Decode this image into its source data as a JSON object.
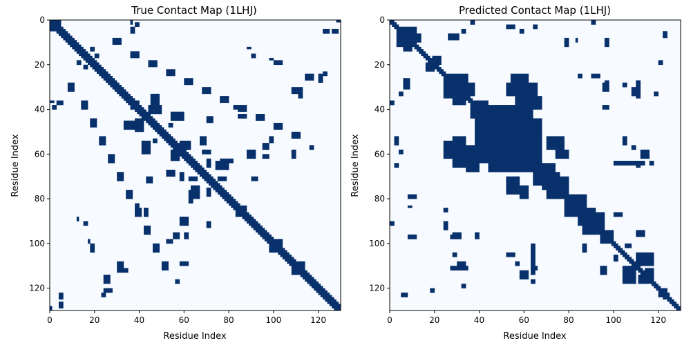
{
  "chart_data": [
    {
      "type": "heatmap",
      "title": "True Contact Map (1LHJ)",
      "xlabel": "Residue Index",
      "ylabel": "Residue Index",
      "n": 130,
      "xlim": [
        0,
        130
      ],
      "ylim": [
        130,
        0
      ],
      "xticks": [
        "0",
        "20",
        "40",
        "60",
        "80",
        "100",
        "120"
      ],
      "yticks": [
        "0",
        "20",
        "40",
        "60",
        "80",
        "100",
        "120"
      ],
      "colormap": {
        "contact": "#08306b",
        "no_contact": "#f7fbff"
      },
      "diagonal_band_halfwidth": 2,
      "contacts": [
        [
          0,
          3,
          1,
          5
        ],
        [
          20,
          22,
          15,
          17
        ],
        [
          50,
          53,
          50,
          53
        ],
        [
          60,
          63,
          60,
          63
        ],
        [
          98,
          104,
          98,
          104
        ],
        [
          108,
          114,
          108,
          114
        ],
        [
          36,
          40,
          36,
          40
        ],
        [
          44,
          50,
          38,
          42
        ],
        [
          33,
          40,
          45,
          49
        ],
        [
          54,
          60,
          41,
          45
        ],
        [
          58,
          63,
          54,
          58
        ],
        [
          52,
          56,
          67,
          70
        ],
        [
          58,
          62,
          54,
          58
        ],
        [
          68,
          72,
          58,
          60
        ],
        [
          62,
          66,
          70,
          72
        ],
        [
          76,
          82,
          62,
          64
        ],
        [
          63,
          67,
          74,
          80
        ],
        [
          70,
          72,
          75,
          79
        ],
        [
          0,
          2,
          36,
          37
        ],
        [
          46,
          48,
          53,
          55
        ],
        [
          70,
          73,
          43,
          46
        ],
        [
          84,
          88,
          42,
          44
        ],
        [
          88,
          90,
          12,
          13
        ],
        [
          98,
          100,
          17,
          18
        ],
        [
          108,
          112,
          30,
          33
        ],
        [
          114,
          118,
          24,
          27
        ],
        [
          122,
          125,
          4,
          6
        ],
        [
          122,
          124,
          23,
          25
        ],
        [
          36,
          38,
          3,
          6
        ],
        [
          12,
          14,
          18,
          20
        ],
        [
          4,
          6,
          126,
          129
        ],
        [
          1,
          3,
          38,
          40
        ],
        [
          15,
          17,
          90,
          92
        ],
        [
          18,
          20,
          100,
          104
        ],
        [
          30,
          35,
          111,
          113
        ],
        [
          24,
          28,
          120,
          122
        ],
        [
          38,
          40,
          82,
          86
        ],
        [
          52,
          55,
          98,
          100
        ],
        [
          55,
          58,
          95,
          98
        ],
        [
          60,
          62,
          95,
          98
        ],
        [
          70,
          72,
          90,
          93
        ],
        [
          85,
          88,
          83,
          86
        ],
        [
          88,
          92,
          58,
          62
        ],
        [
          58,
          62,
          108,
          110
        ],
        [
          8,
          11,
          28,
          32
        ],
        [
          14,
          17,
          36,
          40
        ],
        [
          18,
          21,
          44,
          48
        ],
        [
          22,
          25,
          52,
          56
        ],
        [
          26,
          29,
          60,
          64
        ],
        [
          30,
          33,
          68,
          72
        ],
        [
          34,
          37,
          76,
          80
        ],
        [
          38,
          41,
          84,
          88
        ],
        [
          42,
          45,
          92,
          96
        ],
        [
          46,
          49,
          100,
          104
        ],
        [
          50,
          53,
          108,
          112
        ],
        [
          56,
          58,
          116,
          118
        ],
        [
          128,
          130,
          0,
          1
        ]
      ]
    },
    {
      "type": "heatmap",
      "title": "Predicted Contact Map (1LHJ)",
      "xlabel": "Residue Index",
      "ylabel": "Residue Index",
      "n": 130,
      "xlim": [
        0,
        130
      ],
      "ylim": [
        130,
        0
      ],
      "xticks": [
        "0",
        "20",
        "40",
        "60",
        "80",
        "100",
        "120"
      ],
      "yticks": [
        "0",
        "20",
        "40",
        "60",
        "80",
        "100",
        "120"
      ],
      "colormap": {
        "contact": "#08306b",
        "no_contact": "#f7fbff"
      },
      "diagonal_band_halfwidth": 1,
      "contacts": [
        [
          3,
          10,
          3,
          12
        ],
        [
          6,
          10,
          10,
          14
        ],
        [
          19,
          23,
          16,
          20
        ],
        [
          24,
          35,
          24,
          35
        ],
        [
          26,
          38,
          28,
          34
        ],
        [
          36,
          44,
          36,
          44
        ],
        [
          38,
          52,
          42,
          56
        ],
        [
          44,
          66,
          48,
          68
        ],
        [
          52,
          66,
          52,
          66
        ],
        [
          56,
          64,
          36,
          52
        ],
        [
          46,
          56,
          56,
          60
        ],
        [
          52,
          56,
          62,
          68
        ],
        [
          64,
          74,
          64,
          74
        ],
        [
          68,
          72,
          68,
          76
        ],
        [
          70,
          80,
          72,
          80
        ],
        [
          80,
          88,
          78,
          86
        ],
        [
          84,
          92,
          84,
          92
        ],
        [
          88,
          96,
          86,
          94
        ],
        [
          96,
          100,
          94,
          100
        ],
        [
          34,
          40,
          56,
          62
        ],
        [
          28,
          34,
          52,
          58
        ],
        [
          54,
          60,
          24,
          32
        ],
        [
          58,
          62,
          24,
          34
        ],
        [
          60,
          66,
          28,
          36
        ],
        [
          62,
          68,
          34,
          40
        ],
        [
          52,
          58,
          70,
          78
        ],
        [
          58,
          62,
          74,
          80
        ],
        [
          36,
          40,
          58,
          64
        ],
        [
          26,
          32,
          54,
          58
        ],
        [
          6,
          9,
          26,
          31
        ],
        [
          4,
          6,
          32,
          34
        ],
        [
          8,
          10,
          83,
          84
        ],
        [
          8,
          12,
          96,
          98
        ],
        [
          30,
          34,
          108,
          112
        ],
        [
          36,
          38,
          0,
          2
        ],
        [
          52,
          56,
          2,
          4
        ],
        [
          58,
          60,
          4,
          6
        ],
        [
          64,
          66,
          2,
          4
        ],
        [
          90,
          92,
          0,
          2
        ],
        [
          97,
          98,
          8,
          12
        ],
        [
          84,
          86,
          24,
          26
        ],
        [
          96,
          98,
          27,
          29
        ],
        [
          110,
          112,
          27,
          35
        ],
        [
          110,
          114,
          94,
          97
        ],
        [
          110,
          118,
          104,
          110
        ],
        [
          114,
          118,
          111,
          118
        ],
        [
          122,
          124,
          120,
          125
        ],
        [
          63,
          65,
          100,
          114
        ],
        [
          63,
          65,
          116,
          118
        ],
        [
          24,
          26,
          90,
          94
        ],
        [
          28,
          32,
          95,
          98
        ],
        [
          38,
          40,
          95,
          98
        ],
        [
          52,
          56,
          104,
          106
        ],
        [
          86,
          88,
          100,
          104
        ],
        [
          100,
          102,
          105,
          108
        ],
        [
          8,
          12,
          78,
          80
        ],
        [
          5,
          8,
          122,
          124
        ],
        [
          32,
          34,
          118,
          120
        ],
        [
          28,
          30,
          104,
          106
        ],
        [
          112,
          116,
          58,
          62
        ],
        [
          108,
          110,
          56,
          58
        ],
        [
          110,
          112,
          64,
          66
        ],
        [
          120,
          122,
          18,
          20
        ],
        [
          0,
          2,
          0,
          2
        ]
      ]
    }
  ]
}
